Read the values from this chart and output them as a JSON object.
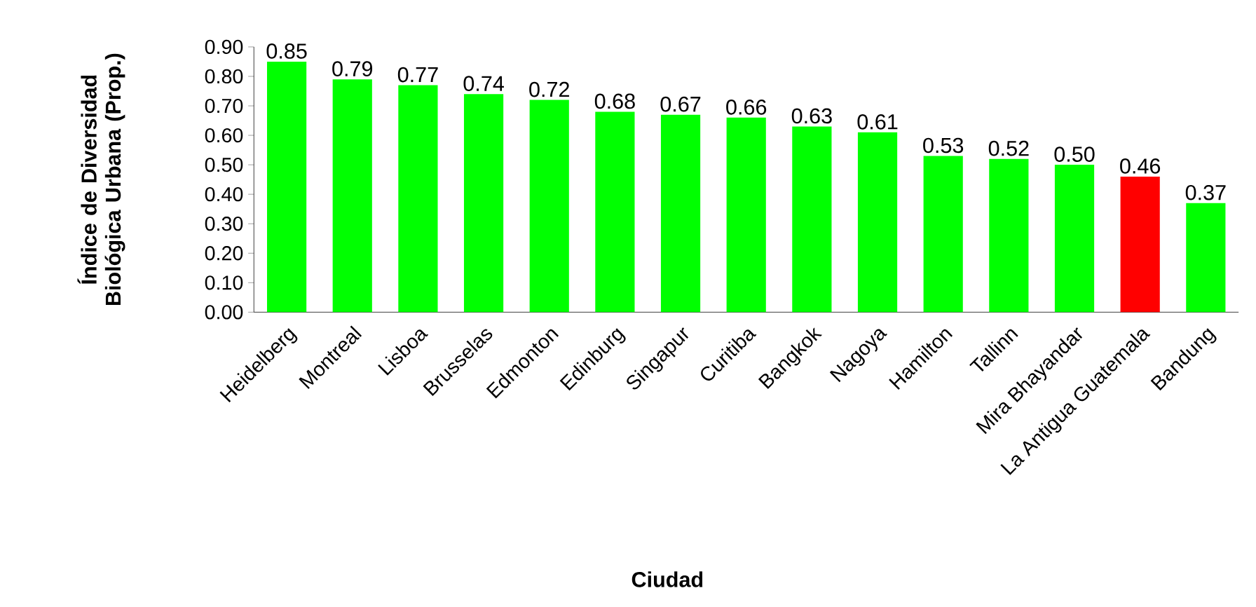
{
  "chart_data": {
    "type": "bar",
    "xlabel": "Ciudad",
    "ylabel": "Índice de Diversidad Biológica Urbana (Prop.)",
    "categories": [
      "Heidelberg",
      "Montreal",
      "Lisboa",
      "Brusselas",
      "Edmonton",
      "Edinburg",
      "Singapur",
      "Curitiba",
      "Bangkok",
      "Nagoya",
      "Hamilton",
      "Tallinn",
      "Mira Bhayandar",
      "La Antigua Guatemala",
      "Bandung"
    ],
    "values": [
      0.85,
      0.79,
      0.77,
      0.74,
      0.72,
      0.68,
      0.67,
      0.66,
      0.63,
      0.61,
      0.53,
      0.52,
      0.5,
      0.46,
      0.37
    ],
    "value_labels": [
      "0.85",
      "0.79",
      "0.77",
      "0.74",
      "0.72",
      "0.68",
      "0.67",
      "0.66",
      "0.63",
      "0.61",
      "0.53",
      "0.52",
      "0.50",
      "0.46",
      "0.37"
    ],
    "colors": [
      "#00ff00",
      "#00ff00",
      "#00ff00",
      "#00ff00",
      "#00ff00",
      "#00ff00",
      "#00ff00",
      "#00ff00",
      "#00ff00",
      "#00ff00",
      "#00ff00",
      "#00ff00",
      "#00ff00",
      "#ff0000",
      "#00ff00"
    ],
    "ylim": [
      0,
      0.9
    ],
    "yticks": [
      {
        "value": 0,
        "label": "0.00"
      },
      {
        "value": 0.1,
        "label": "0.10"
      },
      {
        "value": 0.2,
        "label": "0.20"
      },
      {
        "value": 0.3,
        "label": "0.30"
      },
      {
        "value": 0.4,
        "label": "0.40"
      },
      {
        "value": 0.5,
        "label": "0.50"
      },
      {
        "value": 0.6,
        "label": "0.60"
      },
      {
        "value": 0.7,
        "label": "0.70"
      },
      {
        "value": 0.8,
        "label": "0.80"
      },
      {
        "value": 0.9,
        "label": "0.90"
      }
    ]
  }
}
